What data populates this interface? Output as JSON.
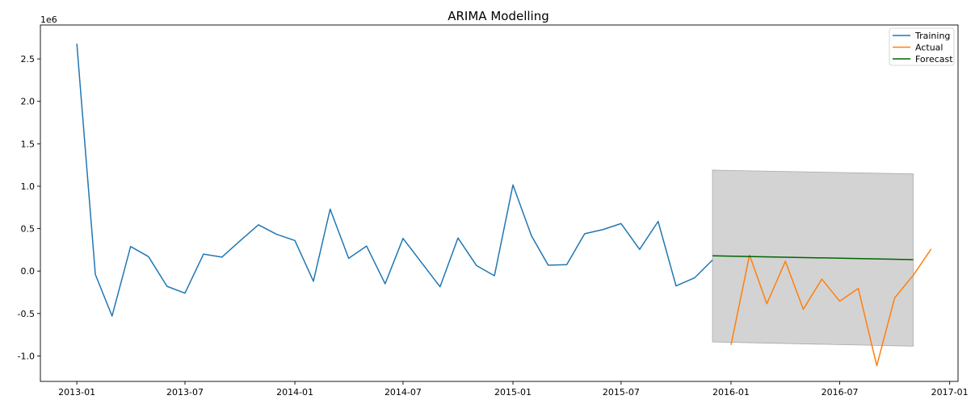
{
  "chart_data": {
    "type": "line",
    "title": "ARIMA Modelling",
    "xlabel": "",
    "ylabel": "",
    "y_offset_label": "1e6",
    "y_scale": 1000000,
    "xlim": [
      "2012-11-01",
      "2017-01-15"
    ],
    "ylim": [
      -1300000,
      2900000
    ],
    "x_ticks": [
      "2013-01",
      "2013-07",
      "2014-01",
      "2014-07",
      "2015-01",
      "2015-07",
      "2016-01",
      "2016-07",
      "2017-01"
    ],
    "y_ticks": [
      "-1.0",
      "-0.5",
      "0.0",
      "0.5",
      "1.0",
      "1.5",
      "2.0",
      "2.5"
    ],
    "grid": false,
    "legend_position": "top-right",
    "colors": {
      "training": "#1f77b4",
      "actual": "#ff7f0e",
      "forecast": "#006400",
      "ci": "#d3d3d3",
      "ci_edge": "#aaaaaa"
    },
    "series": [
      {
        "name": "Training",
        "x": [
          "2013-01-01",
          "2013-02-01",
          "2013-03-01",
          "2013-04-01",
          "2013-05-01",
          "2013-06-01",
          "2013-07-01",
          "2013-08-01",
          "2013-09-01",
          "2013-10-01",
          "2013-11-01",
          "2013-12-01",
          "2014-01-01",
          "2014-02-01",
          "2014-03-01",
          "2014-04-01",
          "2014-05-01",
          "2014-06-01",
          "2014-07-01",
          "2014-08-01",
          "2014-09-01",
          "2014-10-01",
          "2014-11-01",
          "2014-12-01",
          "2015-01-01",
          "2015-02-01",
          "2015-03-01",
          "2015-04-01",
          "2015-05-01",
          "2015-06-01",
          "2015-07-01",
          "2015-08-01",
          "2015-09-01",
          "2015-10-01",
          "2015-11-01",
          "2015-12-01"
        ],
        "values": [
          2680000,
          -40000,
          -530000,
          290000,
          170000,
          -180000,
          -260000,
          200000,
          165000,
          355000,
          545000,
          435000,
          360000,
          -120000,
          730000,
          150000,
          295000,
          -150000,
          385000,
          100000,
          -185000,
          390000,
          65000,
          -55000,
          1015000,
          415000,
          70000,
          75000,
          440000,
          490000,
          560000,
          255000,
          585000,
          -175000,
          -80000,
          130000
        ]
      },
      {
        "name": "Actual",
        "x": [
          "2016-01-01",
          "2016-02-01",
          "2016-03-01",
          "2016-04-01",
          "2016-05-01",
          "2016-06-01",
          "2016-07-01",
          "2016-08-01",
          "2016-09-01",
          "2016-10-01",
          "2016-11-01",
          "2016-12-01"
        ],
        "values": [
          -870000,
          190000,
          -385000,
          115000,
          -450000,
          -95000,
          -355000,
          -205000,
          -1115000,
          -315000,
          -50000,
          260000
        ]
      },
      {
        "name": "Forecast",
        "x": [
          "2015-12-01",
          "2016-11-01"
        ],
        "values": [
          180000,
          135000
        ]
      }
    ],
    "confidence_interval": {
      "x": [
        "2015-12-01",
        "2016-11-01"
      ],
      "upper": [
        1190000,
        1145000
      ],
      "lower": [
        -835000,
        -885000
      ]
    }
  }
}
